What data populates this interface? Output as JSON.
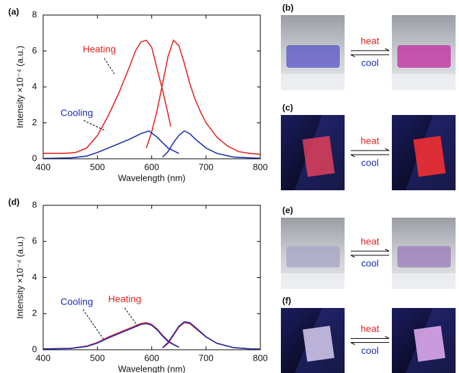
{
  "chart_data": [
    {
      "type": "line",
      "panel_label": "(a)",
      "xlabel": "Wavelength (nm)",
      "ylabel": "Intensity ×10⁻⁴ (a.u.)",
      "xlim": [
        400,
        800
      ],
      "xticks": [
        400,
        500,
        600,
        700,
        800
      ],
      "ylim": [
        0,
        8
      ],
      "yticks": [
        0,
        2,
        4,
        6,
        8
      ],
      "series": [
        {
          "name": "Heating",
          "color": "#e3241f",
          "x": [
            400,
            420,
            440,
            460,
            480,
            500,
            520,
            540,
            560,
            570,
            580,
            590,
            600,
            610,
            620,
            630,
            635,
            null,
            590,
            600,
            610,
            620,
            630,
            640,
            650,
            660,
            670,
            680,
            690,
            700,
            720,
            740,
            760,
            780,
            800
          ],
          "values": [
            0.3,
            0.3,
            0.3,
            0.35,
            0.6,
            1.3,
            2.4,
            3.7,
            5.2,
            6.0,
            6.5,
            6.6,
            6.2,
            5.0,
            3.8,
            2.5,
            1.8,
            null,
            0.6,
            1.5,
            2.7,
            4.2,
            5.7,
            6.6,
            6.3,
            5.3,
            4.2,
            3.3,
            2.6,
            2.0,
            1.2,
            0.7,
            0.4,
            0.3,
            0.25
          ]
        },
        {
          "name": "Cooling",
          "color": "#1a2fb5",
          "x": [
            400,
            450,
            480,
            500,
            520,
            540,
            560,
            580,
            595,
            610,
            620,
            630,
            640,
            650,
            null,
            620,
            630,
            640,
            650,
            660,
            670,
            680,
            700,
            720,
            750,
            780,
            800
          ],
          "values": [
            0.02,
            0.05,
            0.15,
            0.35,
            0.6,
            0.85,
            1.1,
            1.4,
            1.55,
            1.2,
            0.9,
            0.6,
            0.45,
            0.3,
            null,
            0.1,
            0.4,
            0.9,
            1.3,
            1.55,
            1.4,
            1.1,
            0.6,
            0.3,
            0.1,
            0.05,
            0.03
          ]
        }
      ]
    },
    {
      "type": "line",
      "panel_label": "(d)",
      "xlabel": "Wavelength (nm)",
      "ylabel": "Intensity ×10⁻⁴ (a.u.)",
      "xlim": [
        400,
        800
      ],
      "xticks": [
        400,
        500,
        600,
        700,
        800
      ],
      "ylim": [
        0,
        8
      ],
      "yticks": [
        0,
        2,
        4,
        6,
        8
      ],
      "series": [
        {
          "name": "Heating",
          "color": "#e3241f",
          "x": [
            400,
            450,
            480,
            500,
            520,
            540,
            560,
            580,
            590,
            600,
            610,
            620,
            630,
            640,
            650,
            null,
            620,
            630,
            640,
            650,
            660,
            670,
            680,
            700,
            720,
            750,
            780,
            800
          ],
          "values": [
            0.05,
            0.08,
            0.2,
            0.4,
            0.7,
            0.95,
            1.2,
            1.45,
            1.5,
            1.4,
            1.15,
            0.8,
            0.5,
            0.3,
            0.15,
            null,
            0.1,
            0.35,
            0.8,
            1.25,
            1.5,
            1.45,
            1.2,
            0.7,
            0.35,
            0.12,
            0.05,
            0.03
          ]
        },
        {
          "name": "Cooling",
          "color": "#1a2fb5",
          "x": [
            400,
            450,
            480,
            500,
            520,
            540,
            560,
            580,
            590,
            600,
            610,
            620,
            630,
            640,
            650,
            null,
            620,
            630,
            640,
            650,
            660,
            670,
            680,
            700,
            720,
            750,
            780,
            800
          ],
          "values": [
            0.04,
            0.07,
            0.18,
            0.37,
            0.65,
            0.9,
            1.15,
            1.4,
            1.45,
            1.35,
            1.1,
            0.75,
            0.45,
            0.28,
            0.14,
            null,
            0.12,
            0.4,
            0.85,
            1.3,
            1.55,
            1.5,
            1.25,
            0.72,
            0.36,
            0.12,
            0.05,
            0.03
          ]
        }
      ]
    }
  ],
  "photo_panels": [
    {
      "label": "(b)",
      "heat": "heat",
      "cool": "cool"
    },
    {
      "label": "(c)",
      "heat": "heat",
      "cool": "cool"
    },
    {
      "label": "(e)",
      "heat": "heat",
      "cool": "cool"
    },
    {
      "label": "(f)",
      "heat": "heat",
      "cool": "cool"
    }
  ]
}
